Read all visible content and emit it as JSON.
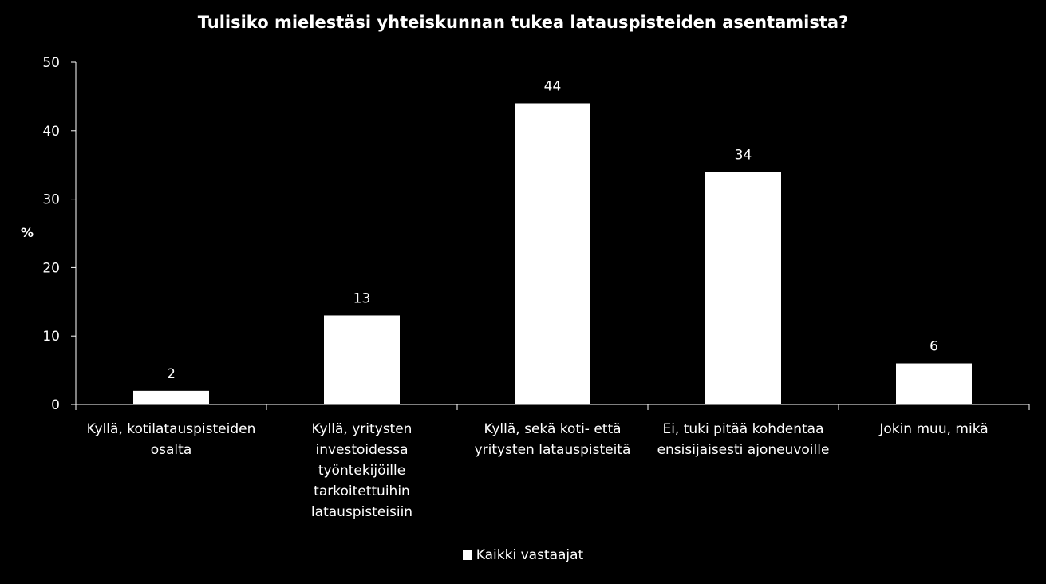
{
  "colors": {
    "background": "#000000",
    "bar": "#ffffff",
    "axis": "#ffffff",
    "text": "#ffffff"
  },
  "chart_data": {
    "type": "bar",
    "title": "Tulisiko mielestäsi yhteiskunnan tukea latauspisteiden asentamista?",
    "ylabel": "%",
    "xlabel": "",
    "ylim": [
      0,
      50
    ],
    "yticks": [
      0,
      10,
      20,
      30,
      40,
      50
    ],
    "grid": false,
    "legend_position": "bottom",
    "categories": [
      [
        "Kyllä, kotilatauspisteiden",
        "osalta"
      ],
      [
        "Kyllä, yritysten",
        "investoidessa",
        "työntekijöille",
        "tarkoitettuihin",
        "latauspisteisiin"
      ],
      [
        "Kyllä, sekä koti- että",
        "yritysten latauspisteitä"
      ],
      [
        "Ei, tuki pitää kohdentaa",
        "ensisijaisesti ajoneuvoille"
      ],
      [
        "Jokin muu, mikä"
      ]
    ],
    "series": [
      {
        "name": "Kaikki vastaajat",
        "values": [
          2,
          13,
          44,
          34,
          6
        ],
        "color": "#ffffff"
      }
    ]
  }
}
